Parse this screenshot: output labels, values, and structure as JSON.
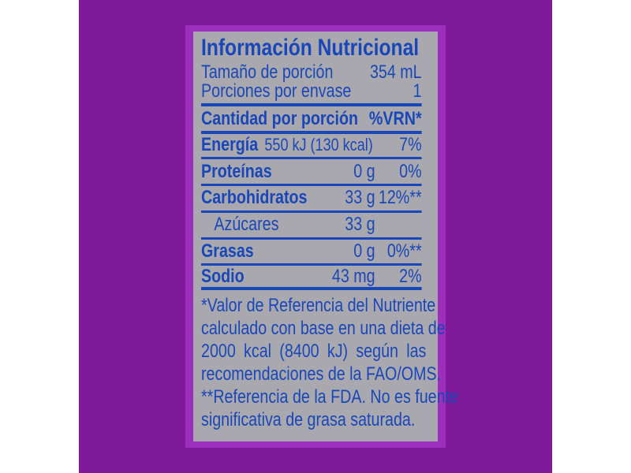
{
  "title": "Información Nutricional",
  "serving_size": {
    "label": "Tamaño de porción",
    "value": "354 mL"
  },
  "servings": {
    "label": "Porciones por envase",
    "value": "1"
  },
  "header": {
    "label": "Cantidad por porción",
    "pct": "%VRN*"
  },
  "nutrients": [
    {
      "name": "Energía",
      "value": "550 kJ (130 kcal)",
      "pct": "7%"
    },
    {
      "name": "Proteínas",
      "value": "0 g",
      "pct": "0%"
    },
    {
      "name": "Carbohidratos",
      "value": "33 g",
      "pct": "12%**"
    },
    {
      "name": "Azúcares",
      "value": "33 g",
      "pct": ""
    },
    {
      "name": "Grasas",
      "value": "0 g",
      "pct": "0%**"
    },
    {
      "name": "Sodio",
      "value": "43 mg",
      "pct": "2%"
    }
  ],
  "footnote_lines": [
    "*Valor de Referencia del Nutriente",
    "calculado con base en una dieta de",
    "2000 kcal (8400 kJ) según las",
    "recomendaciones de la FAO/OMS.",
    "**Referencia de la FDA. No es fuente",
    "significativa de grasa saturada."
  ],
  "colors": {
    "text": "#1a47b8",
    "background": "#7f1b9a",
    "panel": "#a9a8ae",
    "border": "#9d2fbd"
  }
}
